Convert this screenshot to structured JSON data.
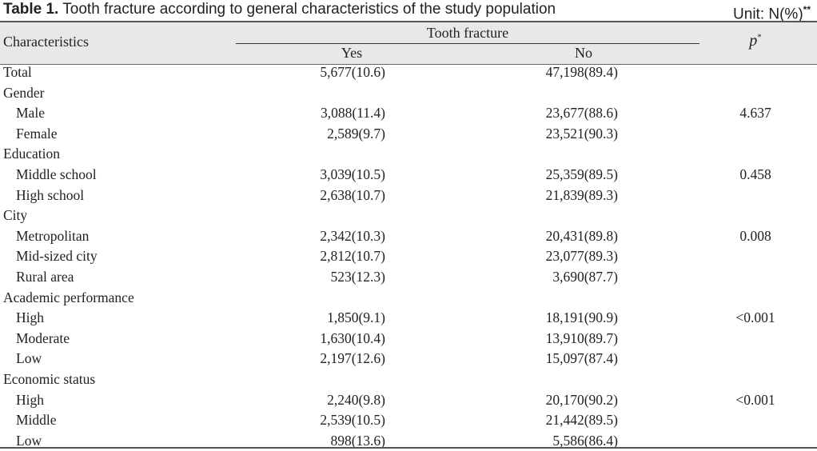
{
  "caption": {
    "label": "Table 1.",
    "title": "Tooth fracture according to general characteristics of the study population",
    "unit": "Unit: N(%)",
    "unit_mark": "**"
  },
  "header": {
    "characteristics": "Characteristics",
    "group": "Tooth fracture",
    "yes": "Yes",
    "no": "No",
    "p": "p",
    "p_mark": "*"
  },
  "rows": [
    {
      "label": "Total",
      "yes": "5,677(10.6)",
      "no": "47,198(89.4)",
      "p": ""
    },
    {
      "label": "Gender",
      "yes": "",
      "no": "",
      "p": ""
    },
    {
      "label": "Male",
      "yes": "3,088(11.4)",
      "no": "23,677(88.6)",
      "p": "4.637",
      "indent": true
    },
    {
      "label": "Female",
      "yes": "2,589(9.7)",
      "no": "23,521(90.3)",
      "p": "",
      "indent": true
    },
    {
      "label": "Education",
      "yes": "",
      "no": "",
      "p": ""
    },
    {
      "label": "Middle school",
      "yes": "3,039(10.5)",
      "no": "25,359(89.5)",
      "p": "0.458",
      "indent": true
    },
    {
      "label": "High school",
      "yes": "2,638(10.7)",
      "no": "21,839(89.3)",
      "p": "",
      "indent": true
    },
    {
      "label": "City",
      "yes": "",
      "no": "",
      "p": ""
    },
    {
      "label": "Metropolitan",
      "yes": "2,342(10.3)",
      "no": "20,431(89.8)",
      "p": "0.008",
      "indent": true
    },
    {
      "label": "Mid-sized city",
      "yes": "2,812(10.7)",
      "no": "23,077(89.3)",
      "p": "",
      "indent": true
    },
    {
      "label": "Rural area",
      "yes": "523(12.3)",
      "no": "3,690(87.7)",
      "p": "",
      "indent": true
    },
    {
      "label": "Academic performance",
      "yes": "",
      "no": "",
      "p": ""
    },
    {
      "label": "High",
      "yes": "1,850(9.1)",
      "no": "18,191(90.9)",
      "p": "<0.001",
      "indent": true
    },
    {
      "label": "Moderate",
      "yes": "1,630(10.4)",
      "no": "13,910(89.7)",
      "p": "",
      "indent": true
    },
    {
      "label": "Low",
      "yes": "2,197(12.6)",
      "no": "15,097(87.4)",
      "p": "",
      "indent": true
    },
    {
      "label": "Economic status",
      "yes": "",
      "no": "",
      "p": ""
    },
    {
      "label": "High",
      "yes": "2,240(9.8)",
      "no": "20,170(90.2)",
      "p": "<0.001",
      "indent": true
    },
    {
      "label": "Middle",
      "yes": "2,539(10.5)",
      "no": "21,442(89.5)",
      "p": "",
      "indent": true
    },
    {
      "label": "Low",
      "yes": "898(13.6)",
      "no": "5,586(86.4)",
      "p": "",
      "indent": true
    }
  ]
}
